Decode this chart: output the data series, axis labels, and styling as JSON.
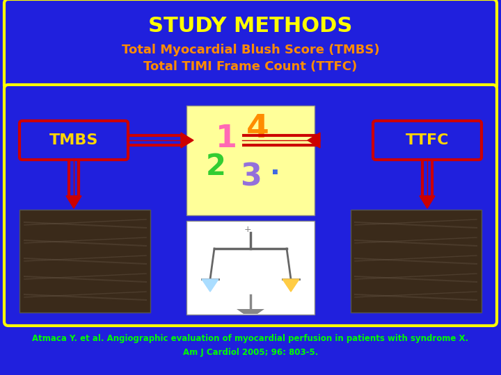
{
  "bg_color": "#2020DD",
  "title_box_bg": "#2020DD",
  "title_box_border": "#FFFF00",
  "title_text": "STUDY METHODS",
  "title_color": "#FFFF00",
  "subtitle1": "Total Myocardial Blush Score (TMBS)",
  "subtitle2": "Total TIMI Frame Count (TTFC)",
  "subtitle_color": "#FF8C00",
  "inner_box_border": "#FFFF00",
  "inner_box_bg": "#2020DD",
  "tmbs_label": "TMBS",
  "ttfc_label": "TTFC",
  "label_color": "#FFD700",
  "label_box_border": "#CC0000",
  "label_box_bg": "#2020DD",
  "arrow_color": "#CC0000",
  "citation1": "Atmaca Y. et al. Angiographic evaluation of myocardial perfusion in patients with syndrome X.",
  "citation2": "Am J Cardiol 2005; 96: 803-5.",
  "citation_color": "#00FF00"
}
